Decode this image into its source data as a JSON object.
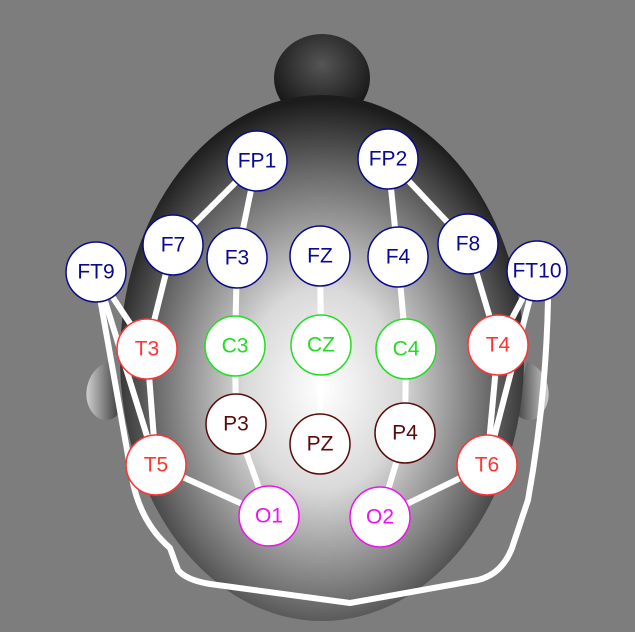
{
  "colors": {
    "background": "#7d7d7d",
    "frontal": "#0a0a8c",
    "temporal": "#ff3333",
    "central": "#22dd22",
    "parietal": "#5a0a0a",
    "occipital": "#ee11ee",
    "connector": "#ffffff"
  },
  "electrodes": {
    "FP1": {
      "label": "FP1",
      "group": "frontal"
    },
    "FP2": {
      "label": "FP2",
      "group": "frontal"
    },
    "F7": {
      "label": "F7",
      "group": "frontal"
    },
    "F3": {
      "label": "F3",
      "group": "frontal"
    },
    "FZ": {
      "label": "FZ",
      "group": "frontal"
    },
    "F4": {
      "label": "F4",
      "group": "frontal"
    },
    "F8": {
      "label": "F8",
      "group": "frontal"
    },
    "FT9": {
      "label": "FT9",
      "group": "frontal"
    },
    "FT10": {
      "label": "FT10",
      "group": "frontal"
    },
    "T3": {
      "label": "T3",
      "group": "temporal"
    },
    "T4": {
      "label": "T4",
      "group": "temporal"
    },
    "T5": {
      "label": "T5",
      "group": "temporal"
    },
    "T6": {
      "label": "T6",
      "group": "temporal"
    },
    "C3": {
      "label": "C3",
      "group": "central"
    },
    "CZ": {
      "label": "CZ",
      "group": "central"
    },
    "C4": {
      "label": "C4",
      "group": "central"
    },
    "P3": {
      "label": "P3",
      "group": "parietal"
    },
    "PZ": {
      "label": "PZ",
      "group": "parietal"
    },
    "P4": {
      "label": "P4",
      "group": "parietal"
    },
    "O1": {
      "label": "O1",
      "group": "occipital"
    },
    "O2": {
      "label": "O2",
      "group": "occipital"
    }
  },
  "connections": [
    [
      "FP1",
      "F7"
    ],
    [
      "F7",
      "T3"
    ],
    [
      "T3",
      "T5"
    ],
    [
      "T5",
      "O1"
    ],
    [
      "FP1",
      "F3"
    ],
    [
      "F3",
      "C3"
    ],
    [
      "C3",
      "P3"
    ],
    [
      "P3",
      "O1"
    ],
    [
      "FZ",
      "CZ"
    ],
    [
      "CZ",
      "PZ"
    ],
    [
      "FP2",
      "F4"
    ],
    [
      "F4",
      "C4"
    ],
    [
      "C4",
      "P4"
    ],
    [
      "P4",
      "O2"
    ],
    [
      "FP2",
      "F8"
    ],
    [
      "F8",
      "T4"
    ],
    [
      "T4",
      "T6"
    ],
    [
      "T6",
      "O2"
    ],
    [
      "FT9",
      "T3"
    ],
    [
      "FT9",
      "T5"
    ],
    [
      "FT10",
      "T4"
    ],
    [
      "FT10",
      "T6"
    ]
  ]
}
